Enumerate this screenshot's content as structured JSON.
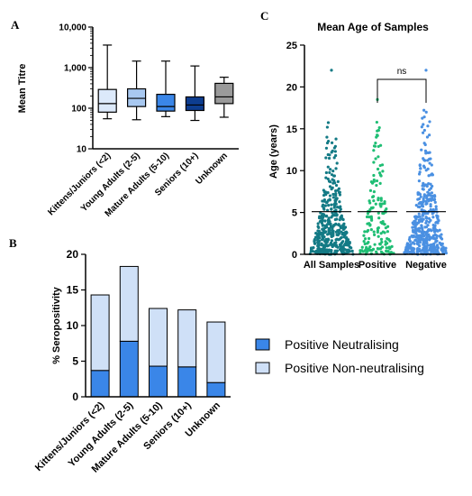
{
  "panels": {
    "a": "A",
    "b": "B",
    "c": "C"
  },
  "chart_data": [
    {
      "panel": "A",
      "type": "boxplot",
      "ylabel": "Mean Titre",
      "yscale": "log",
      "ylim": [
        10,
        10000
      ],
      "yticks": [
        {
          "v": 10,
          "label": "10"
        },
        {
          "v": 100,
          "label": "100"
        },
        {
          "v": 1000,
          "label": "1,000"
        },
        {
          "v": 10000,
          "label": "10,000"
        }
      ],
      "categories": [
        "Kittens/Juniors (<2)",
        "Young Adults (2-5)",
        "Mature Adults (5-10)",
        "Seniors (10+)",
        "Unknown"
      ],
      "boxes": [
        {
          "min": 55,
          "q1": 80,
          "median": 130,
          "q3": 290,
          "max": 3600,
          "color": "#dce9fa"
        },
        {
          "min": 52,
          "q1": 110,
          "median": 175,
          "q3": 300,
          "max": 1450,
          "color": "#a8c8f0"
        },
        {
          "min": 62,
          "q1": 85,
          "median": 110,
          "q3": 220,
          "max": 1450,
          "color": "#3a86e8"
        },
        {
          "min": 50,
          "q1": 88,
          "median": 120,
          "q3": 190,
          "max": 1100,
          "color": "#0d3d8f"
        },
        {
          "min": 60,
          "q1": 130,
          "median": 190,
          "q3": 410,
          "max": 580,
          "color": "#9a9a9a"
        }
      ]
    },
    {
      "panel": "B",
      "type": "bar",
      "stacked": true,
      "ylabel": "% Seropositivity",
      "ylim": [
        0,
        20
      ],
      "yticks": [
        "0",
        "5",
        "10",
        "15",
        "20"
      ],
      "categories": [
        "Kittens/Juniors (<2)",
        "Young Adults (2-5)",
        "Mature Adults (5-10)",
        "Seniors (10+)",
        "Unknown"
      ],
      "series": [
        {
          "name": "Positive Neutralising",
          "values": [
            3.7,
            7.8,
            4.3,
            4.2,
            2.0
          ],
          "color": "#3a86e8"
        },
        {
          "name": "Positive Non-neutralising",
          "values": [
            10.6,
            10.5,
            8.1,
            8.0,
            8.5
          ],
          "color": "#cfe0f7"
        }
      ],
      "legend": "right"
    },
    {
      "panel": "C",
      "type": "scatter",
      "title": "Mean Age of Samples",
      "ylabel": "Age (years)",
      "ylim": [
        0,
        25
      ],
      "yticks": [
        "0",
        "5",
        "10",
        "15",
        "20",
        "25"
      ],
      "categories": [
        "All Samples",
        "Positive",
        "Negative"
      ],
      "means": [
        5.1,
        5.1,
        5.1
      ],
      "maxima": [
        22,
        18.5,
        22
      ],
      "colors": [
        "#137a85",
        "#1fbe74",
        "#4a90e2"
      ],
      "significance": {
        "from": "Positive",
        "to": "Negative",
        "label": "ns"
      }
    }
  ]
}
